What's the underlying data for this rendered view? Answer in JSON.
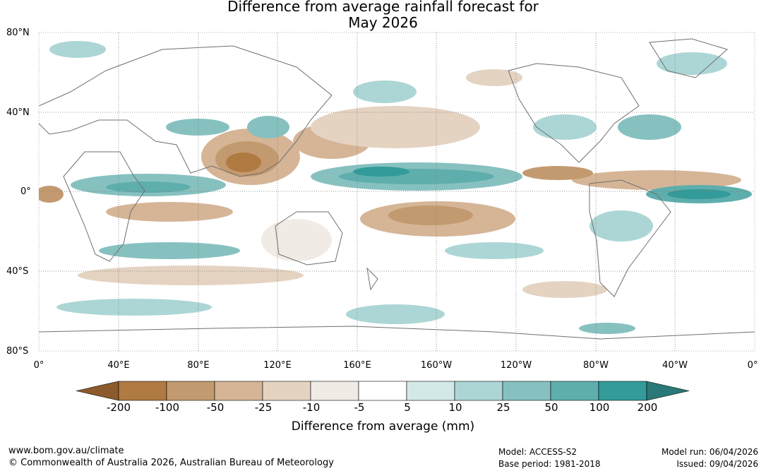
{
  "title": {
    "line1": "Difference from average rainfall forecast for",
    "line2": "May 2026"
  },
  "axes": {
    "lat_labels": [
      "80°N",
      "40°N",
      "0°",
      "40°S",
      "80°S"
    ],
    "lon_labels": [
      "0°",
      "40°E",
      "80°E",
      "120°E",
      "160°E",
      "160°W",
      "120°W",
      "80°W",
      "40°W",
      "0°"
    ]
  },
  "colorbar": {
    "label": "Difference from average (mm)",
    "ticks": [
      "-200",
      "-100",
      "-50",
      "-25",
      "-10",
      "-5",
      "5",
      "10",
      "25",
      "50",
      "100",
      "200"
    ],
    "colors": [
      "#8c5a2b",
      "#b07a43",
      "#c39a70",
      "#d5b596",
      "#e5d3c2",
      "#f1ebe6",
      "#ffffff",
      "#d3e9e8",
      "#acd6d5",
      "#86c1c0",
      "#5eaead",
      "#339b99",
      "#2a7877"
    ]
  },
  "footer": {
    "website": "www.bom.gov.au/climate",
    "copyright": "© Commonwealth of Australia 2026, Australian Bureau of Meteorology",
    "model": "Model: ACCESS-S2",
    "base_period": "Base period: 1981-2018",
    "model_run": "Model run: 06/04/2026",
    "issued": "Issued: 09/04/2026"
  }
}
